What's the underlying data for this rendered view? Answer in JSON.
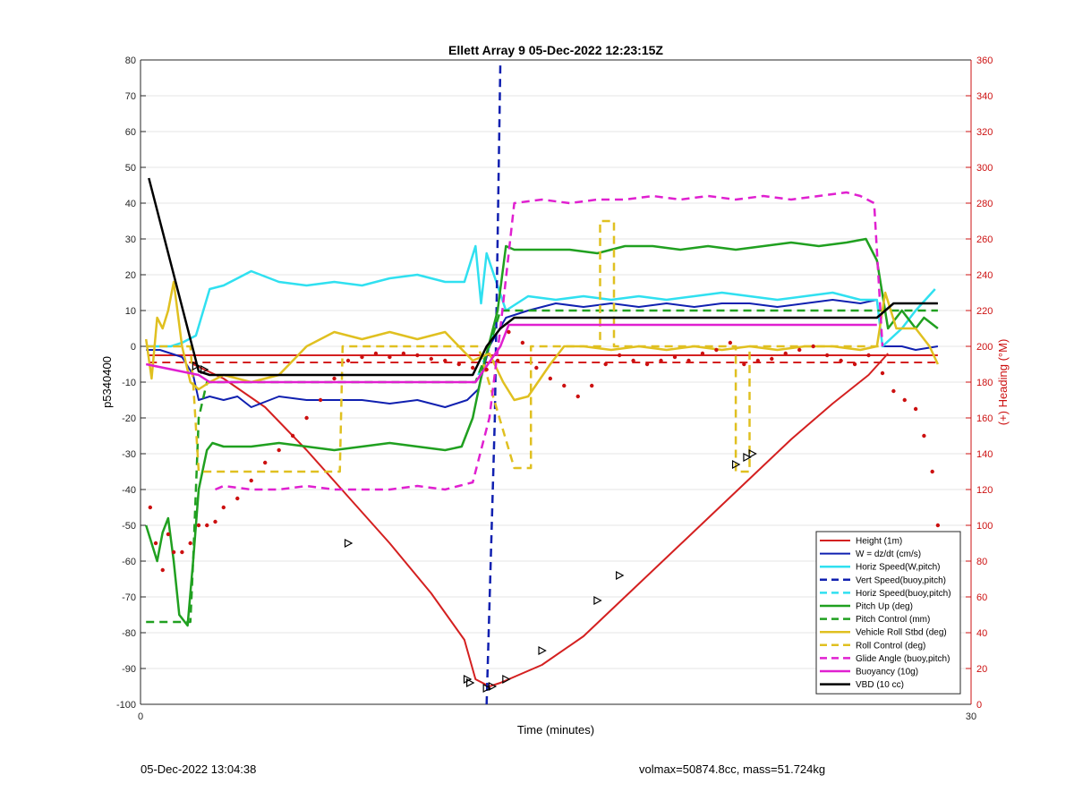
{
  "chart_data": {
    "type": "line",
    "title": "Ellett Array 9 05-Dec-2022 12:23:15Z",
    "xlabel": "Time (minutes)",
    "ylabel": "p5340400",
    "ylabel_right": "(+) Heading (°M)",
    "xlim": [
      0,
      30
    ],
    "ylim": [
      -100,
      80
    ],
    "ylim_right": [
      0,
      360
    ],
    "x_ticks": [
      0,
      30
    ],
    "y_ticks": [
      -100,
      -90,
      -80,
      -70,
      -60,
      -50,
      -40,
      -30,
      -20,
      -10,
      0,
      10,
      20,
      30,
      40,
      50,
      60,
      70,
      80
    ],
    "y_ticks_right": [
      0,
      20,
      40,
      60,
      80,
      100,
      120,
      140,
      160,
      180,
      200,
      220,
      240,
      260,
      280,
      300,
      320,
      340,
      360
    ],
    "grid": true,
    "legend_position": "bottom-right",
    "series": [
      {
        "name": "Height (1m)",
        "color": "#d42020",
        "style": "solid",
        "width": 2,
        "x": [
          1.9,
          3,
          4.5,
          6,
          7.5,
          9,
          10.5,
          11.7,
          12.1,
          12.6,
          13,
          14.5,
          16,
          17.5,
          19,
          20.5,
          22,
          23.5,
          25,
          26.3,
          27
        ],
        "y": [
          -5,
          -9,
          -17,
          -29,
          -42,
          -55,
          -69,
          -82,
          -93,
          -95,
          -94,
          -89,
          -81,
          -70,
          -59,
          -48,
          -37,
          -26,
          -16,
          -8,
          -2
        ]
      },
      {
        "name": "W = dz/dt (cm/s)",
        "color": "#1020b0",
        "style": "solid",
        "width": 2,
        "x": [
          0.2,
          0.7,
          1.5,
          1.9,
          2.1,
          2.5,
          3,
          3.5,
          4,
          5,
          6,
          7,
          8,
          9,
          10,
          11,
          11.8,
          12.2,
          12.6,
          13.2,
          14,
          15,
          16,
          17,
          18,
          19,
          20,
          21,
          22,
          23,
          24,
          25,
          26,
          26.6,
          26.8,
          27.5,
          28,
          28.8
        ],
        "y": [
          -1,
          -1,
          -3,
          -8,
          -15,
          -14,
          -15,
          -14,
          -17,
          -14,
          -15,
          -15,
          -15,
          -16,
          -15,
          -17,
          -15,
          -12,
          0,
          8,
          10,
          12,
          11,
          12,
          11,
          12,
          11,
          12,
          12,
          11,
          12,
          13,
          12,
          13,
          0,
          0,
          -1,
          0
        ]
      },
      {
        "name": "Horiz Speed(W,pitch)",
        "color": "#30e0f0",
        "style": "solid",
        "width": 2.5,
        "x": [
          0.2,
          1.1,
          1.5,
          2,
          2.5,
          3,
          3.5,
          4,
          5,
          6,
          7,
          8,
          9,
          10,
          11,
          11.7,
          12.1,
          12.3,
          12.5,
          13.2,
          14,
          15,
          16,
          17,
          18,
          19,
          20,
          21,
          22,
          23,
          24,
          25,
          26,
          26.6,
          26.8,
          27.5,
          28,
          28.7
        ],
        "y": [
          0,
          0,
          1,
          3,
          16,
          17,
          19,
          21,
          18,
          17,
          18,
          17,
          19,
          20,
          18,
          18,
          28,
          12,
          26,
          10,
          14,
          13,
          14,
          13,
          14,
          13,
          14,
          15,
          14,
          13,
          14,
          15,
          13,
          13,
          0,
          5,
          10,
          16
        ]
      },
      {
        "name": "Vert Speed(buoy,pitch)",
        "color": "#1020b0",
        "style": "dashed",
        "width": 2.5,
        "x": [
          12.5,
          12.8,
          13
        ],
        "y": [
          -100,
          -20,
          80
        ]
      },
      {
        "name": "Horiz Speed(buoy,pitch)",
        "color": "#30e0f0",
        "style": "dashed",
        "width": 2.5,
        "x": [
          12.2,
          12.5,
          12.8
        ],
        "y": [
          -8,
          -2,
          5
        ]
      },
      {
        "name": "Pitch Up (deg)",
        "color": "#20a020",
        "style": "solid",
        "width": 2.5,
        "x": [
          0.2,
          0.4,
          0.6,
          0.8,
          1,
          1.2,
          1.4,
          1.7,
          1.9,
          2.1,
          2.4,
          2.6,
          3,
          4,
          5,
          6,
          7,
          8,
          9,
          10,
          11,
          11.6,
          12,
          12.4,
          12.9,
          13.2,
          13.5,
          14.5,
          15.5,
          16.5,
          17.5,
          18.5,
          19.5,
          20.5,
          21.5,
          22.5,
          23.5,
          24.5,
          25.5,
          26.2,
          26.6,
          27,
          27.5,
          28,
          28.3,
          28.8
        ],
        "y": [
          -50,
          -55,
          -60,
          -52,
          -48,
          -60,
          -75,
          -78,
          -60,
          -40,
          -29,
          -27,
          -28,
          -28,
          -27,
          -28,
          -29,
          -28,
          -27,
          -28,
          -29,
          -28,
          -20,
          -5,
          10,
          28,
          27,
          27,
          27,
          26,
          28,
          28,
          27,
          28,
          27,
          28,
          29,
          28,
          29,
          30,
          24,
          5,
          10,
          5,
          8,
          5
        ]
      },
      {
        "name": "Pitch Control (mm)",
        "color": "#20a020",
        "style": "dashed",
        "width": 2.5,
        "x": [
          0.2,
          1.8,
          1.9,
          2.1,
          2.4,
          3,
          12.1,
          12.6,
          13,
          27,
          28.8
        ],
        "y": [
          -77,
          -77,
          -60,
          -20,
          -10,
          -10,
          -10,
          0,
          10,
          10,
          10
        ]
      },
      {
        "name": "Vehicle Roll Stbd (deg)",
        "color": "#e0c020",
        "style": "solid",
        "width": 2.5,
        "x": [
          0.2,
          0.4,
          0.6,
          0.8,
          1,
          1.2,
          1.5,
          1.8,
          2.1,
          2.5,
          3,
          4,
          5,
          6,
          7,
          8,
          9,
          10,
          11,
          11.5,
          12,
          12.6,
          13.1,
          13.5,
          14,
          14.8,
          15.3,
          16,
          17,
          18,
          19,
          20,
          21,
          22,
          23,
          24,
          25,
          26,
          26.6,
          26.9,
          27.3,
          28,
          28.5,
          28.8
        ],
        "y": [
          2,
          -9,
          8,
          5,
          10,
          18,
          0,
          -10,
          -12,
          -10,
          -8,
          -10,
          -8,
          0,
          4,
          2,
          4,
          2,
          4,
          0,
          -4,
          -2,
          -10,
          -15,
          -14,
          -5,
          0,
          0,
          -1,
          0,
          -1,
          0,
          -1,
          0,
          -1,
          0,
          0,
          -1,
          0,
          15,
          5,
          5,
          0,
          -5
        ]
      },
      {
        "name": "Roll Control (deg)",
        "color": "#e0c020",
        "style": "dashed",
        "width": 2.5,
        "x": [
          0.2,
          1.8,
          1.9,
          2.1,
          7.2,
          7.3,
          12,
          12.2,
          13.5,
          14.1,
          14.1,
          16.6,
          16.6,
          17.1,
          17.1,
          21.5,
          21.5,
          22,
          22,
          26.6,
          26.8
        ],
        "y": [
          0,
          0,
          -10,
          -35,
          -35,
          0,
          0,
          0,
          -34,
          -34,
          0,
          0,
          35,
          35,
          0,
          0,
          -35,
          -35,
          0,
          0,
          0
        ]
      },
      {
        "name": "Glide Angle (buoy,pitch)",
        "color": "#e020d0",
        "style": "dashed",
        "width": 2.5,
        "x": [
          2.7,
          3,
          4,
          5,
          6,
          7,
          8,
          9,
          10,
          11,
          11.5,
          12,
          12.6,
          13,
          13.5,
          14.5,
          15.5,
          16.5,
          17.5,
          18.5,
          19.5,
          20.5,
          21.5,
          22.5,
          23.5,
          24.5,
          25.5,
          26,
          26.5,
          26.8
        ],
        "y": [
          -40,
          -39,
          -40,
          -40,
          -39,
          -40,
          -40,
          -40,
          -39,
          -40,
          -39,
          -38,
          -20,
          5,
          40,
          41,
          40,
          41,
          41,
          42,
          41,
          42,
          41,
          42,
          41,
          42,
          43,
          42,
          40,
          0
        ]
      },
      {
        "name": "Buoyancy (10g)",
        "color": "#e020d0",
        "style": "solid",
        "width": 2.5,
        "x": [
          0.2,
          2.1,
          2.5,
          12.1,
          13,
          13.3,
          26.6
        ],
        "y": [
          -5,
          -8,
          -10,
          -10,
          0,
          6,
          6
        ]
      },
      {
        "name": "VBD (10 cc)",
        "color": "#000000",
        "style": "solid",
        "width": 2.5,
        "x": [
          0.3,
          2.1,
          2.5,
          12,
          12.5,
          13,
          13.5,
          26.6,
          27.2,
          28.8
        ],
        "y": [
          47,
          -7,
          -8,
          -8,
          0,
          5,
          8,
          8,
          12,
          12
        ]
      }
    ],
    "heading": {
      "name": "Heading",
      "color": "#cc1010",
      "axis": "right",
      "x": [
        0.35,
        0.55,
        0.8,
        1,
        1.2,
        1.5,
        1.8,
        2.1,
        2.4,
        2.7,
        3,
        3.5,
        4,
        4.5,
        5,
        5.5,
        6,
        6.5,
        7,
        7.5,
        8,
        8.5,
        9,
        9.5,
        10,
        10.5,
        11,
        11.5,
        12,
        12.5,
        12.9,
        13.3,
        13.8,
        14.3,
        14.8,
        15.3,
        15.8,
        16.3,
        16.8,
        17.3,
        17.8,
        18.3,
        18.8,
        19.3,
        19.8,
        20.3,
        20.8,
        21.3,
        21.8,
        22.3,
        22.8,
        23.3,
        23.8,
        24.3,
        24.8,
        25.3,
        25.8,
        26.3,
        26.8,
        27.2,
        27.6,
        28,
        28.3,
        28.6,
        28.8
      ],
      "y": [
        110,
        90,
        75,
        95,
        85,
        85,
        90,
        100,
        100,
        102,
        110,
        115,
        125,
        135,
        142,
        150,
        160,
        170,
        182,
        192,
        194,
        196,
        194,
        196,
        195,
        193,
        192,
        190,
        188,
        187,
        192,
        208,
        202,
        188,
        182,
        178,
        172,
        178,
        190,
        195,
        192,
        190,
        192,
        194,
        192,
        196,
        198,
        202,
        190,
        192,
        193,
        196,
        198,
        200,
        195,
        192,
        190,
        195,
        185,
        175,
        170,
        165,
        150,
        130,
        100
      ]
    },
    "markers": {
      "name": "Height waypoints",
      "series": "Height (1m)",
      "x": [
        2,
        2.3,
        7.5,
        11.8,
        11.9,
        12.5,
        12.7,
        13.2,
        14.5,
        16.5,
        17.3,
        21.5,
        21.9,
        22.1
      ],
      "y": [
        -5.5,
        -6.5,
        -55,
        -93,
        -94,
        -95.5,
        -95,
        -93,
        -85,
        -71,
        -64,
        -33,
        -31,
        -30
      ]
    }
  },
  "footer": {
    "left": "05-Dec-2022 13:04:38",
    "right": "volmax=50874.8cc, mass=51.724kg"
  }
}
